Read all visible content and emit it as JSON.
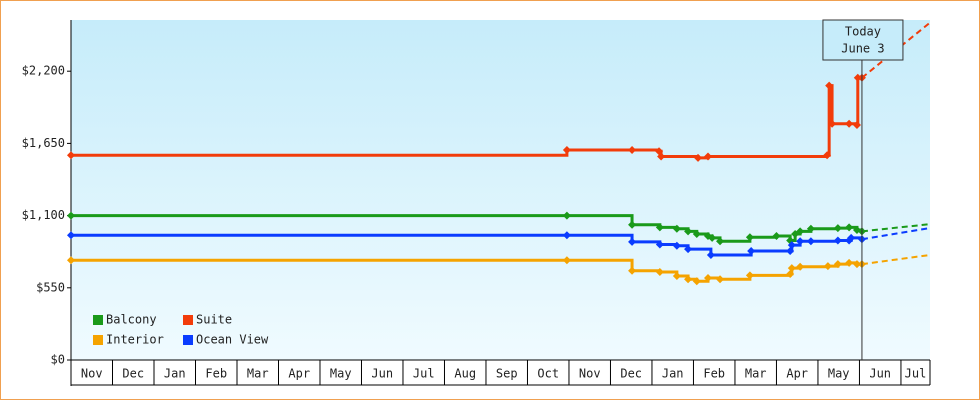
{
  "chart_data": {
    "type": "step-line",
    "categories": [
      "Nov",
      "Dec",
      "Jan",
      "Feb",
      "Mar",
      "Apr",
      "May",
      "Jun",
      "Jul",
      "Aug",
      "Sep",
      "Oct",
      "Nov",
      "Dec",
      "Jan",
      "Feb",
      "Mar",
      "Apr",
      "May",
      "Jun",
      "Jul"
    ],
    "xlim": [
      0,
      20.7
    ],
    "ylim": [
      0,
      2590
    ],
    "yticks": [
      {
        "value": 0,
        "label": "$0"
      },
      {
        "value": 550,
        "label": "$550"
      },
      {
        "value": 1100,
        "label": "$1,100"
      },
      {
        "value": 1650,
        "label": "$1,650"
      },
      {
        "value": 2200,
        "label": "$2,200"
      }
    ],
    "today": {
      "label": [
        "Today",
        "June 3"
      ],
      "x": 19.06
    },
    "series": [
      {
        "name": "Balcony",
        "color": "#1a9a1a",
        "x": [
          0,
          11.95,
          13.52,
          14.19,
          14.6,
          14.87,
          15.08,
          15.35,
          15.45,
          15.64,
          16.36,
          17.0,
          17.33,
          17.45,
          17.57,
          17.83,
          18.48,
          18.75,
          18.94,
          19.06
        ],
        "values": [
          1100,
          1100,
          1030,
          1010,
          1000,
          980,
          960,
          945,
          930,
          905,
          935,
          945,
          910,
          960,
          980,
          1000,
          1005,
          1010,
          990,
          980
        ],
        "forecast": {
          "x": [
            19.06,
            20.7
          ],
          "values": [
            980,
            1035
          ]
        }
      },
      {
        "name": "Suite",
        "color": "#f23c0a",
        "x": [
          0,
          11.95,
          13.52,
          14.17,
          14.22,
          15.11,
          15.35,
          18.22,
          18.27,
          18.34,
          18.75,
          18.94,
          18.96,
          19.06
        ],
        "values": [
          1560,
          1600,
          1600,
          1590,
          1550,
          1540,
          1550,
          1560,
          2090,
          1800,
          1800,
          1790,
          2150,
          2150
        ],
        "forecast": {
          "x": [
            19.06,
            20.7
          ],
          "values": [
            2150,
            2570
          ]
        }
      },
      {
        "name": "Interior",
        "color": "#f5a300",
        "x": [
          0,
          11.95,
          13.52,
          14.19,
          14.6,
          14.87,
          15.08,
          15.35,
          15.64,
          16.36,
          17.33,
          17.37,
          17.57,
          18.24,
          18.48,
          18.75,
          18.94,
          19.06
        ],
        "values": [
          760,
          760,
          680,
          670,
          640,
          615,
          600,
          625,
          615,
          645,
          655,
          700,
          710,
          715,
          730,
          740,
          730,
          730
        ],
        "forecast": {
          "x": [
            19.06,
            20.7
          ],
          "values": [
            730,
            800
          ]
        }
      },
      {
        "name": "Ocean View",
        "color": "#0a3cff",
        "x": [
          0,
          11.95,
          13.52,
          14.19,
          14.6,
          14.87,
          15.42,
          16.39,
          17.33,
          17.37,
          17.57,
          17.83,
          18.48,
          18.75,
          18.8,
          19.06
        ],
        "values": [
          950,
          950,
          900,
          880,
          870,
          845,
          800,
          830,
          830,
          875,
          905,
          905,
          910,
          910,
          930,
          920
        ],
        "forecast": {
          "x": [
            19.06,
            20.7
          ],
          "values": [
            920,
            1005
          ]
        }
      }
    ]
  }
}
